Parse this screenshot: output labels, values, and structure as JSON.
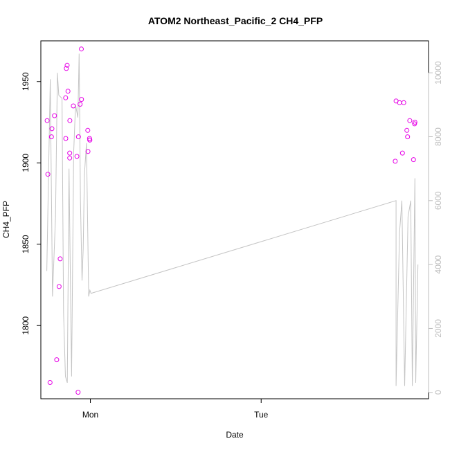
{
  "chart_data": {
    "type": "scatter",
    "title": "ATOM2 Northeast_Pacific_2 CH4_PFP",
    "xlabel": "Date",
    "ylabel": "CH4_PFP",
    "x_ticks": [
      "Mon",
      "Tue"
    ],
    "x_tick_positions_days": [
      0,
      1
    ],
    "xlim_days": [
      -0.29,
      1.98
    ],
    "ylim": [
      1755,
      1975
    ],
    "y_ticks": [
      1800,
      1850,
      1900,
      1950
    ],
    "y2_ticks": [
      0,
      2000,
      4000,
      6000,
      8000,
      10000
    ],
    "y2lim": [
      -200,
      11000
    ],
    "y2_label": "",
    "grid": false,
    "colors": {
      "points": "#e600e6",
      "line": "#c4c4c4",
      "axis": "#000000",
      "right_axis": "#bdbdbd"
    },
    "series": [
      {
        "kind": "points",
        "x": [
          -0.253,
          -0.249,
          -0.236,
          -0.228,
          -0.225,
          -0.21,
          -0.197,
          -0.183,
          -0.177,
          -0.144,
          -0.145,
          -0.141,
          -0.136,
          -0.131,
          -0.121,
          -0.121,
          -0.12,
          -0.1,
          -0.079,
          -0.072,
          -0.07,
          -0.06,
          -0.053,
          -0.052,
          -0.015,
          -0.014,
          -0.004,
          -0.005,
          -0.003,
          1.785,
          1.79,
          1.81,
          1.827,
          1.835,
          1.853,
          1.857,
          1.87,
          1.892,
          1.898,
          1.9
        ],
        "y": [
          1926,
          1893,
          1765,
          1916,
          1921,
          1929,
          1779,
          1824,
          1841,
          1915,
          1940,
          1958,
          1960,
          1944,
          1906,
          1903,
          1926,
          1935,
          1904,
          1759,
          1916,
          1936,
          1970,
          1939,
          1920,
          1907,
          1914,
          1915,
          1914,
          1901,
          1938,
          1937,
          1906,
          1937,
          1920,
          1916,
          1926,
          1902,
          1924,
          1925
        ]
      },
      {
        "kind": "line",
        "axis": "right",
        "x": [
          -0.255,
          -0.235,
          -0.222,
          -0.204,
          -0.193,
          -0.185,
          -0.166,
          -0.157,
          -0.146,
          -0.135,
          -0.125,
          -0.11,
          -0.098,
          -0.087,
          -0.073,
          -0.066,
          -0.058,
          -0.049,
          -0.042,
          -0.035,
          -0.023,
          -0.01,
          -0.003,
          0.004,
          1.79,
          1.79,
          1.81,
          1.824,
          1.84,
          1.86,
          1.876,
          1.885,
          1.9,
          1.905,
          1.918
        ],
        "y": [
          3800,
          9800,
          3000,
          5500,
          10000,
          9300,
          9200,
          2500,
          500,
          300,
          7000,
          500,
          7500,
          9000,
          8600,
          10600,
          6000,
          3500,
          4500,
          6800,
          7800,
          3000,
          3200,
          3100,
          6000,
          200,
          5000,
          6000,
          200,
          5500,
          6000,
          200,
          6700,
          300,
          4000
        ]
      }
    ]
  }
}
